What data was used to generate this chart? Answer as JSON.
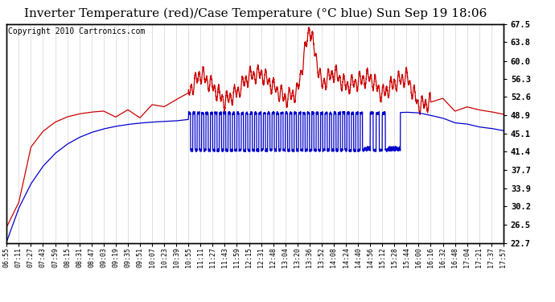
{
  "title": "Inverter Temperature (red)/Case Temperature (°C blue) Sun Sep 19 18:06",
  "copyright": "Copyright 2010 Cartronics.com",
  "yticks": [
    22.7,
    26.5,
    30.2,
    33.9,
    37.7,
    41.4,
    45.1,
    48.9,
    52.6,
    56.3,
    60.0,
    63.8,
    67.5
  ],
  "ylim": [
    22.7,
    67.5
  ],
  "xtick_labels": [
    "06:55",
    "07:11",
    "07:27",
    "07:43",
    "07:59",
    "08:15",
    "08:31",
    "08:47",
    "09:03",
    "09:19",
    "09:35",
    "09:51",
    "10:07",
    "10:23",
    "10:39",
    "10:55",
    "11:11",
    "11:27",
    "11:43",
    "11:59",
    "12:15",
    "12:31",
    "12:48",
    "13:04",
    "13:20",
    "13:36",
    "13:52",
    "14:08",
    "14:24",
    "14:40",
    "14:56",
    "15:12",
    "15:28",
    "15:44",
    "16:00",
    "16:16",
    "16:32",
    "16:48",
    "17:04",
    "17:21",
    "17:37",
    "17:57"
  ],
  "background_color": "#ffffff",
  "grid_color": "#c8c8c8",
  "red_color": "#cc0000",
  "blue_color": "#0000cc",
  "title_fontsize": 11,
  "copyright_fontsize": 7
}
